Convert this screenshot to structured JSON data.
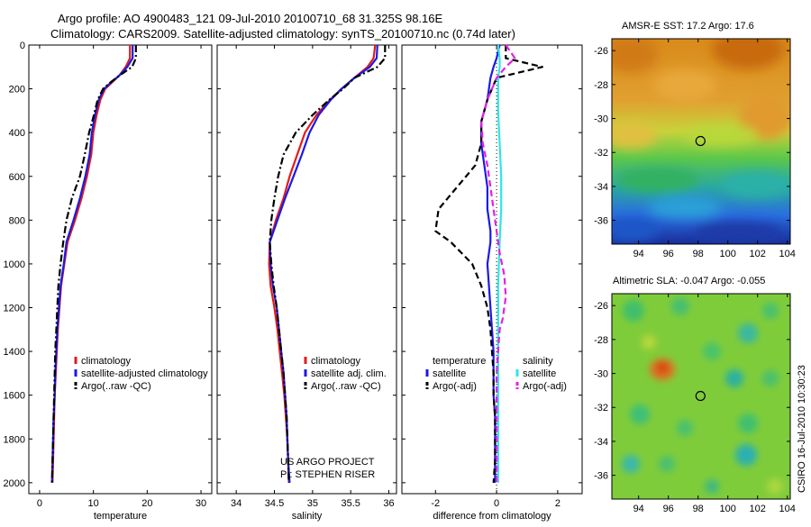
{
  "header": {
    "line1": "Argo profile: AO 4900483_121 09-Jul-2010 20100710_68 31.325S 98.16E",
    "line2": "Climatology: CARS2009. Satellite-adjusted climatology: synTS_20100710.nc (0.74d later)"
  },
  "colors": {
    "climatology": "#e41a1c",
    "satellite": "#1a1ae6",
    "argo": "#000000",
    "satellite_sal": "#2ee6e6",
    "argo_sal": "#e61ee6"
  },
  "chart_data": [
    {
      "type": "line",
      "xlabel": "temperature",
      "ylim": [
        2050,
        0
      ],
      "yticks": [
        0,
        200,
        400,
        600,
        800,
        1000,
        1200,
        1400,
        1600,
        1800,
        2000
      ],
      "xlim": [
        -2,
        32
      ],
      "xticks": [
        0,
        10,
        20,
        30
      ],
      "series": [
        {
          "name": "climatology",
          "style": "solid",
          "color": "#e41a1c",
          "points": [
            [
              16.8,
              0
            ],
            [
              16.8,
              60
            ],
            [
              16.0,
              100
            ],
            [
              14.8,
              140
            ],
            [
              13.5,
              170
            ],
            [
              12.2,
              200
            ],
            [
              11.3,
              250
            ],
            [
              10.6,
              320
            ],
            [
              10.0,
              400
            ],
            [
              9.6,
              500
            ],
            [
              8.8,
              600
            ],
            [
              7.8,
              700
            ],
            [
              6.6,
              800
            ],
            [
              5.2,
              900
            ],
            [
              4.6,
              1000
            ],
            [
              4.0,
              1100
            ],
            [
              3.7,
              1200
            ],
            [
              3.4,
              1300
            ],
            [
              3.2,
              1400
            ],
            [
              3.0,
              1500
            ],
            [
              2.8,
              1600
            ],
            [
              2.7,
              1700
            ],
            [
              2.6,
              1800
            ],
            [
              2.5,
              1900
            ],
            [
              2.4,
              2000
            ]
          ]
        },
        {
          "name": "satellite-adjusted climatology",
          "style": "solid",
          "color": "#1a1ae6",
          "points": [
            [
              17.3,
              0
            ],
            [
              17.3,
              60
            ],
            [
              16.3,
              100
            ],
            [
              14.8,
              140
            ],
            [
              13.3,
              170
            ],
            [
              12.0,
              200
            ],
            [
              11.0,
              250
            ],
            [
              10.3,
              320
            ],
            [
              9.7,
              400
            ],
            [
              9.3,
              500
            ],
            [
              8.5,
              600
            ],
            [
              7.5,
              700
            ],
            [
              6.3,
              800
            ],
            [
              5.0,
              900
            ],
            [
              4.5,
              1000
            ],
            [
              3.9,
              1100
            ],
            [
              3.6,
              1200
            ],
            [
              3.3,
              1300
            ],
            [
              3.1,
              1400
            ],
            [
              2.9,
              1500
            ],
            [
              2.8,
              1600
            ],
            [
              2.6,
              1700
            ],
            [
              2.5,
              1800
            ],
            [
              2.4,
              1900
            ],
            [
              2.3,
              2000
            ]
          ]
        },
        {
          "name": "Argo(..raw -QC)",
          "style": "dashdot",
          "color": "#000000",
          "points": [
            [
              17.9,
              0
            ],
            [
              17.9,
              60
            ],
            [
              17.2,
              100
            ],
            [
              14.8,
              140
            ],
            [
              13.2,
              170
            ],
            [
              11.8,
              200
            ],
            [
              10.8,
              250
            ],
            [
              10.1,
              320
            ],
            [
              9.2,
              400
            ],
            [
              8.4,
              500
            ],
            [
              7.5,
              600
            ],
            [
              6.0,
              700
            ],
            [
              5.0,
              800
            ],
            [
              4.4,
              900
            ],
            [
              3.9,
              1000
            ],
            [
              3.5,
              1100
            ],
            [
              3.3,
              1200
            ],
            [
              3.1,
              1300
            ],
            [
              2.9,
              1400
            ],
            [
              2.8,
              1500
            ],
            [
              2.7,
              1600
            ],
            [
              2.6,
              1700
            ],
            [
              2.5,
              1800
            ],
            [
              2.4,
              1900
            ],
            [
              2.3,
              2000
            ]
          ]
        }
      ],
      "legend": [
        "climatology",
        "satellite-adjusted climatology",
        "Argo(..raw -QC)"
      ]
    },
    {
      "type": "line",
      "xlabel": "salinity",
      "ylim": [
        2050,
        0
      ],
      "xlim": [
        33.75,
        36.1
      ],
      "xticks": [
        34,
        34.5,
        35,
        35.5,
        36
      ],
      "xticklabels": [
        "34",
        "34.5",
        "35",
        "35.5",
        "36"
      ],
      "series": [
        {
          "name": "climatology",
          "style": "solid",
          "color": "#e41a1c",
          "points": [
            [
              35.82,
              0
            ],
            [
              35.8,
              60
            ],
            [
              35.72,
              100
            ],
            [
              35.55,
              150
            ],
            [
              35.38,
              200
            ],
            [
              35.23,
              250
            ],
            [
              35.05,
              320
            ],
            [
              34.9,
              400
            ],
            [
              34.8,
              500
            ],
            [
              34.7,
              600
            ],
            [
              34.62,
              700
            ],
            [
              34.52,
              800
            ],
            [
              34.44,
              900
            ],
            [
              34.43,
              1000
            ],
            [
              34.45,
              1100
            ],
            [
              34.5,
              1200
            ],
            [
              34.54,
              1300
            ],
            [
              34.57,
              1400
            ],
            [
              34.6,
              1500
            ],
            [
              34.63,
              1600
            ],
            [
              34.65,
              1700
            ],
            [
              34.67,
              1800
            ],
            [
              34.68,
              1900
            ],
            [
              34.69,
              2000
            ]
          ]
        },
        {
          "name": "satellite adj. clim.",
          "style": "solid",
          "color": "#1a1ae6",
          "points": [
            [
              35.85,
              0
            ],
            [
              35.84,
              60
            ],
            [
              35.75,
              100
            ],
            [
              35.55,
              150
            ],
            [
              35.38,
              200
            ],
            [
              35.24,
              250
            ],
            [
              35.08,
              320
            ],
            [
              34.96,
              400
            ],
            [
              34.86,
              500
            ],
            [
              34.75,
              600
            ],
            [
              34.64,
              700
            ],
            [
              34.54,
              800
            ],
            [
              34.44,
              900
            ],
            [
              34.45,
              1000
            ],
            [
              34.48,
              1100
            ],
            [
              34.53,
              1200
            ],
            [
              34.56,
              1300
            ],
            [
              34.59,
              1400
            ],
            [
              34.62,
              1500
            ],
            [
              34.64,
              1600
            ],
            [
              34.66,
              1700
            ],
            [
              34.67,
              1800
            ],
            [
              34.68,
              1900
            ],
            [
              34.7,
              2000
            ]
          ]
        },
        {
          "name": "Argo(..raw -QC)",
          "style": "dashdot",
          "color": "#000000",
          "points": [
            [
              35.95,
              0
            ],
            [
              35.95,
              60
            ],
            [
              35.85,
              100
            ],
            [
              35.55,
              150
            ],
            [
              35.4,
              200
            ],
            [
              35.22,
              250
            ],
            [
              35.0,
              320
            ],
            [
              34.78,
              400
            ],
            [
              34.62,
              500
            ],
            [
              34.55,
              600
            ],
            [
              34.5,
              700
            ],
            [
              34.46,
              800
            ],
            [
              34.44,
              900
            ],
            [
              34.46,
              1000
            ],
            [
              34.49,
              1100
            ],
            [
              34.53,
              1200
            ],
            [
              34.56,
              1300
            ],
            [
              34.59,
              1400
            ],
            [
              34.62,
              1500
            ],
            [
              34.64,
              1600
            ],
            [
              34.66,
              1700
            ],
            [
              34.67,
              1800
            ],
            [
              34.68,
              1900
            ],
            [
              34.69,
              2000
            ]
          ]
        }
      ],
      "legend": [
        "climatology",
        "satellite adj. clim.",
        "Argo(..raw -QC)"
      ],
      "annotation": [
        "US ARGO PROJECT",
        "PI: STEPHEN RISER"
      ]
    },
    {
      "type": "line",
      "xlabel": "difference from climatology",
      "ylim": [
        2050,
        0
      ],
      "xlim": [
        -3.1,
        2.8
      ],
      "xticks": [
        -2,
        0,
        2
      ],
      "series": [
        {
          "name": "temperature satellite",
          "style": "solid",
          "color": "#1a1ae6",
          "points": [
            [
              0.1,
              0
            ],
            [
              0.0,
              60
            ],
            [
              -0.1,
              100
            ],
            [
              -0.2,
              150
            ],
            [
              -0.3,
              250
            ],
            [
              -0.5,
              350
            ],
            [
              -0.5,
              450
            ],
            [
              -0.4,
              550
            ],
            [
              -0.3,
              650
            ],
            [
              -0.3,
              750
            ],
            [
              -0.2,
              850
            ],
            [
              -0.2,
              900
            ],
            [
              -0.3,
              1000
            ],
            [
              -0.25,
              1100
            ],
            [
              -0.2,
              1200
            ],
            [
              -0.15,
              1300
            ],
            [
              -0.1,
              1400
            ],
            [
              -0.1,
              1500
            ],
            [
              -0.1,
              1600
            ],
            [
              -0.05,
              1700
            ],
            [
              -0.05,
              1800
            ],
            [
              -0.05,
              1900
            ],
            [
              -0.05,
              2000
            ]
          ]
        },
        {
          "name": "temperature Argo(-adj)",
          "style": "dash",
          "color": "#000000",
          "points": [
            [
              0.3,
              0
            ],
            [
              0.3,
              60
            ],
            [
              1.5,
              100
            ],
            [
              0.0,
              150
            ],
            [
              -0.3,
              250
            ],
            [
              -0.5,
              350
            ],
            [
              -0.5,
              450
            ],
            [
              -0.7,
              550
            ],
            [
              -1.3,
              650
            ],
            [
              -1.9,
              750
            ],
            [
              -2.0,
              850
            ],
            [
              -1.5,
              900
            ],
            [
              -0.8,
              1000
            ],
            [
              -0.5,
              1100
            ],
            [
              -0.3,
              1200
            ],
            [
              -0.2,
              1300
            ],
            [
              -0.15,
              1400
            ],
            [
              -0.1,
              1500
            ],
            [
              -0.1,
              1600
            ],
            [
              -0.05,
              1700
            ],
            [
              -0.05,
              1800
            ],
            [
              -0.05,
              1900
            ],
            [
              -0.1,
              2000
            ]
          ]
        },
        {
          "name": "salinity satellite",
          "style": "solid",
          "color": "#2ee6e6",
          "points": [
            [
              0.05,
              0
            ],
            [
              0.1,
              60
            ],
            [
              0.1,
              100
            ],
            [
              0.05,
              150
            ],
            [
              0.05,
              300
            ],
            [
              0.1,
              450
            ],
            [
              0.15,
              600
            ],
            [
              0.15,
              750
            ],
            [
              0.1,
              900
            ],
            [
              0.05,
              1100
            ],
            [
              0.05,
              1300
            ],
            [
              0.05,
              1500
            ],
            [
              0.05,
              1700
            ],
            [
              0.05,
              2000
            ]
          ]
        },
        {
          "name": "salinity Argo(-adj)",
          "style": "dash",
          "color": "#e61ee6",
          "points": [
            [
              0.3,
              0
            ],
            [
              0.6,
              60
            ],
            [
              0.3,
              100
            ],
            [
              0.0,
              150
            ],
            [
              -0.3,
              250
            ],
            [
              -0.5,
              350
            ],
            [
              -0.45,
              450
            ],
            [
              -0.3,
              550
            ],
            [
              -0.2,
              650
            ],
            [
              -0.1,
              750
            ],
            [
              0.0,
              850
            ],
            [
              0.1,
              950
            ],
            [
              0.25,
              1050
            ],
            [
              0.3,
              1150
            ],
            [
              0.2,
              1250
            ],
            [
              0.1,
              1300
            ],
            [
              0.05,
              1400
            ],
            [
              0.0,
              1500
            ],
            [
              0.0,
              1600
            ],
            [
              0.0,
              1800
            ],
            [
              0.0,
              2000
            ]
          ]
        }
      ],
      "legend_left_title": "temperature",
      "legend_right_title": "salinity",
      "legend_left": [
        "satellite",
        "Argo(-adj)"
      ],
      "legend_right": [
        "satellite",
        "Argo(-adj)"
      ]
    },
    {
      "type": "heatmap",
      "title": "AMSR-E SST: 17.2 Argo: 17.6",
      "xticks": [
        94,
        96,
        98,
        100,
        102,
        104
      ],
      "yticks": [
        -26,
        -28,
        -30,
        -32,
        -34,
        -36
      ],
      "xlim": [
        92.2,
        104.2
      ],
      "ylim": [
        -37.4,
        -25.3
      ],
      "marker": [
        98.16,
        -31.325
      ]
    },
    {
      "type": "heatmap",
      "title": "Altimetric SLA: -0.047 Argo: -0.055",
      "xticks": [
        94,
        96,
        98,
        100,
        102,
        104
      ],
      "yticks": [
        -26,
        -28,
        -30,
        -32,
        -34,
        -36
      ],
      "xlim": [
        92.2,
        104.2
      ],
      "ylim": [
        -37.4,
        -25.3
      ],
      "marker": [
        98.16,
        -31.325
      ]
    }
  ],
  "side_label": "CSIRO 16-Jul-2010 10:30:23"
}
